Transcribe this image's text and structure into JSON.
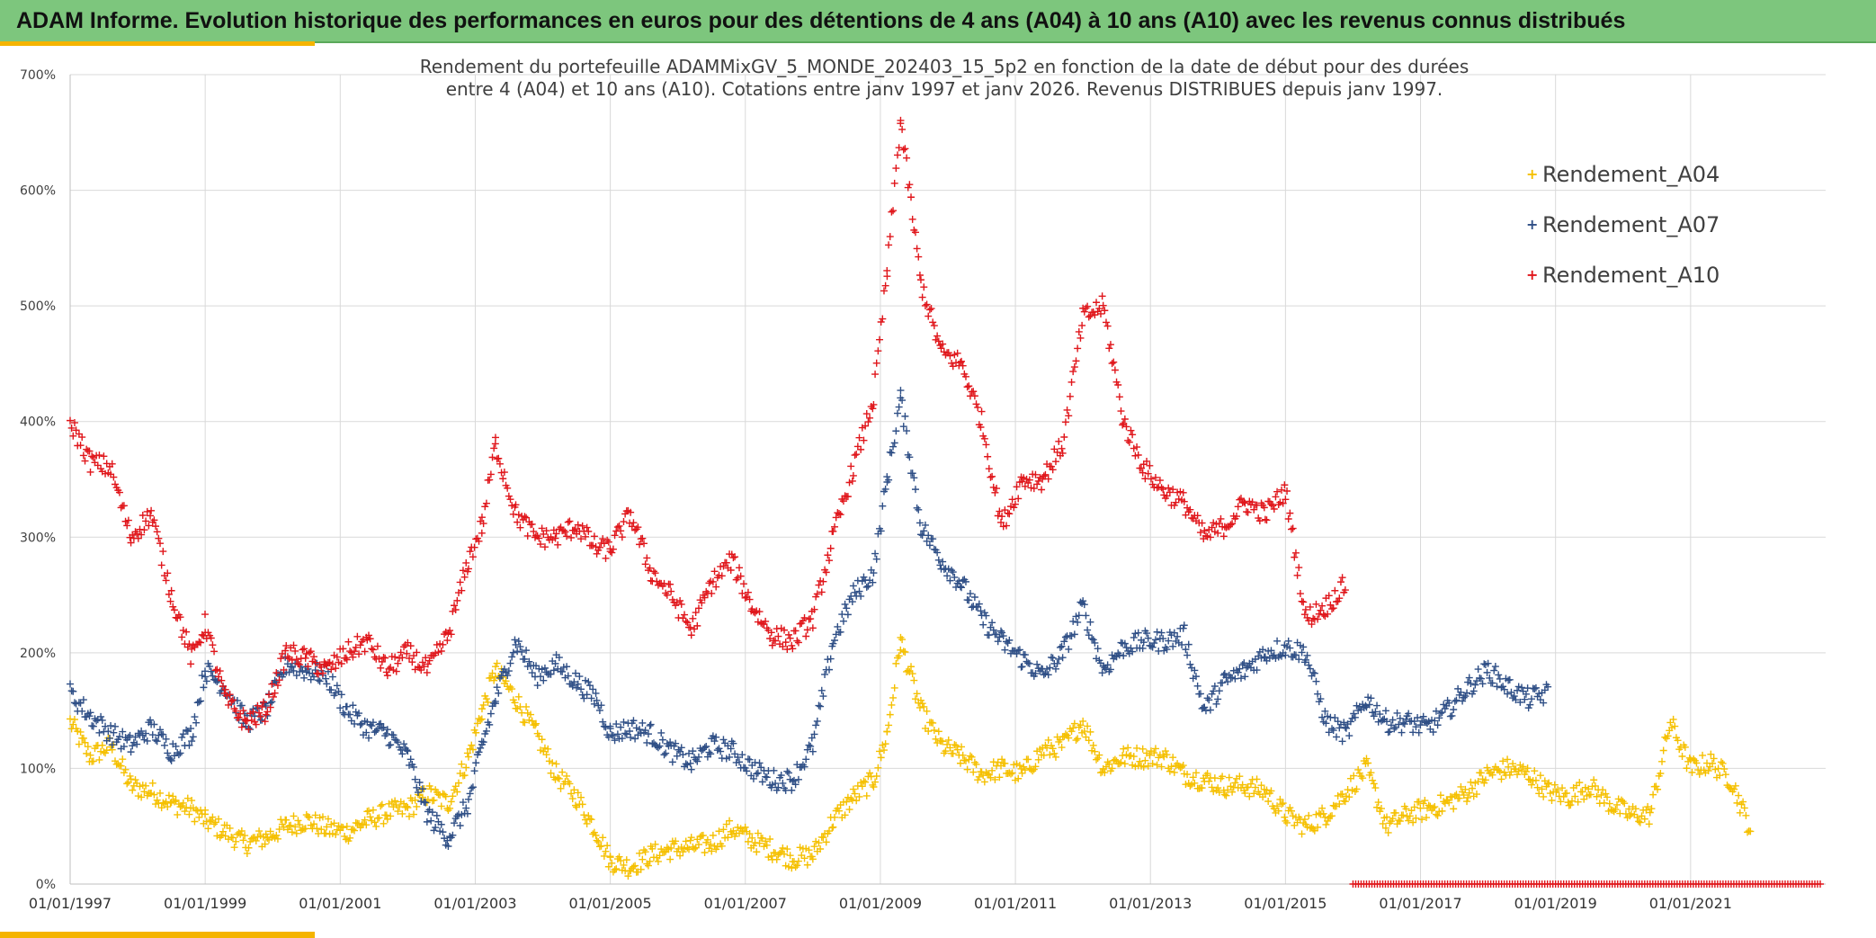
{
  "banner": {
    "title": "ADAM Informe. Evolution historique des performances en euros pour des détentions de 4 ans (A04) à 10 ans (A10) avec les revenus connus distribués"
  },
  "colors": {
    "banner": "#7dc67d",
    "accent": "#f5b400",
    "A04": "#f5c000",
    "A07": "#2f4f86",
    "A10": "#e0161b"
  },
  "chart_data": {
    "type": "scatter",
    "title_line1": "Rendement du portefeuille ADAMMixGV_5_MONDE_202403_15_5p2  en fonction de la date de début pour des durées",
    "title_line2": "entre 4 (A04) et 10 ans (A10). Cotations entre janv 1997 et janv 2026. Revenus DISTRIBUES depuis janv 1997.",
    "marker": "+",
    "xlim": [
      "01/01/1997",
      "01/01/2023"
    ],
    "ylim": [
      0,
      700
    ],
    "y_ticks": [
      "0%",
      "100%",
      "200%",
      "300%",
      "400%",
      "500%",
      "600%",
      "700%"
    ],
    "x_ticks": [
      "01/01/1997",
      "01/01/1999",
      "01/01/2001",
      "01/01/2003",
      "01/01/2005",
      "01/01/2007",
      "01/01/2009",
      "01/01/2011",
      "01/01/2013",
      "01/01/2015",
      "01/01/2017",
      "01/01/2019",
      "01/01/2021"
    ],
    "grid": true,
    "legend_position": "top-right",
    "series": [
      {
        "name": "Rendement_A04",
        "x": [
          1997.0,
          1997.3,
          1997.6,
          1997.9,
          1998.2,
          1998.5,
          1998.8,
          1999.0,
          1999.3,
          1999.6,
          1999.9,
          2000.2,
          2000.5,
          2000.8,
          2001.1,
          2001.4,
          2001.7,
          2002.0,
          2002.3,
          2002.6,
          2002.9,
          2003.1,
          2003.3,
          2003.6,
          2003.9,
          2004.2,
          2004.5,
          2004.8,
          2005.0,
          2005.3,
          2005.6,
          2005.9,
          2006.2,
          2006.5,
          2006.8,
          2007.1,
          2007.4,
          2007.7,
          2008.0,
          2008.3,
          2008.6,
          2008.9,
          2009.1,
          2009.3,
          2009.6,
          2009.9,
          2010.2,
          2010.5,
          2010.8,
          2011.1,
          2011.4,
          2011.7,
          2012.0,
          2012.3,
          2012.6,
          2012.9,
          2013.2,
          2013.5,
          2013.8,
          2014.1,
          2014.4,
          2014.7,
          2015.0,
          2015.3,
          2015.6,
          2015.9,
          2016.2,
          2016.5,
          2016.8,
          2017.1,
          2017.4,
          2017.7,
          2018.0,
          2018.3,
          2018.6,
          2018.9,
          2019.2,
          2019.5,
          2019.8,
          2020.1,
          2020.4,
          2020.7,
          2021.0,
          2021.3,
          2021.6,
          2021.9
        ],
        "y": [
          140,
          110,
          120,
          85,
          80,
          70,
          65,
          55,
          45,
          35,
          40,
          50,
          55,
          48,
          45,
          55,
          62,
          65,
          78,
          70,
          110,
          150,
          185,
          160,
          130,
          95,
          75,
          45,
          20,
          15,
          25,
          30,
          32,
          35,
          48,
          38,
          30,
          22,
          25,
          55,
          75,
          90,
          130,
          210,
          150,
          120,
          110,
          95,
          100,
          95,
          115,
          120,
          140,
          100,
          110,
          110,
          110,
          95,
          90,
          85,
          85,
          80,
          60,
          50,
          60,
          80,
          100,
          50,
          60,
          65,
          70,
          80,
          95,
          100,
          95,
          80,
          75,
          85,
          70,
          60,
          60,
          140,
          100,
          105,
          90,
          45
        ]
      },
      {
        "name": "Rendement_A07",
        "x": [
          1997.0,
          1997.3,
          1997.6,
          1997.9,
          1998.2,
          1998.5,
          1998.8,
          1999.0,
          1999.3,
          1999.6,
          1999.9,
          2000.2,
          2000.5,
          2000.8,
          2001.1,
          2001.4,
          2001.7,
          2002.0,
          2002.3,
          2002.6,
          2002.9,
          2003.1,
          2003.3,
          2003.6,
          2003.9,
          2004.2,
          2004.5,
          2004.8,
          2005.0,
          2005.3,
          2005.6,
          2005.9,
          2006.2,
          2006.5,
          2006.8,
          2007.1,
          2007.4,
          2007.7,
          2008.0,
          2008.3,
          2008.6,
          2008.9,
          2009.1,
          2009.3,
          2009.6,
          2009.9,
          2010.2,
          2010.5,
          2010.8,
          2011.1,
          2011.4,
          2011.7,
          2012.0,
          2012.3,
          2012.6,
          2012.9,
          2013.2,
          2013.5,
          2013.8,
          2014.1,
          2014.4,
          2014.7,
          2015.0,
          2015.3,
          2015.6,
          2015.9,
          2016.2,
          2016.5,
          2016.8,
          2017.1,
          2017.4,
          2017.7,
          2018.0,
          2018.3,
          2018.6,
          2018.9
        ],
        "y": [
          165,
          145,
          130,
          120,
          135,
          115,
          130,
          185,
          170,
          140,
          150,
          190,
          185,
          180,
          150,
          135,
          130,
          110,
          60,
          40,
          70,
          120,
          160,
          210,
          180,
          190,
          175,
          160,
          130,
          135,
          130,
          115,
          105,
          120,
          115,
          100,
          90,
          90,
          120,
          210,
          250,
          270,
          350,
          420,
          310,
          280,
          260,
          230,
          210,
          195,
          180,
          200,
          240,
          185,
          205,
          210,
          210,
          215,
          150,
          175,
          185,
          200,
          205,
          200,
          140,
          130,
          160,
          140,
          140,
          135,
          150,
          170,
          185,
          170,
          160,
          165
        ]
      },
      {
        "name": "Rendement_A10",
        "x": [
          1997.0,
          1997.3,
          1997.6,
          1997.9,
          1998.2,
          1998.5,
          1998.8,
          1999.0,
          1999.3,
          1999.6,
          1999.9,
          2000.2,
          2000.5,
          2000.8,
          2001.1,
          2001.4,
          2001.7,
          2002.0,
          2002.3,
          2002.6,
          2002.9,
          2003.1,
          2003.3,
          2003.6,
          2003.9,
          2004.2,
          2004.5,
          2004.8,
          2005.0,
          2005.3,
          2005.6,
          2005.9,
          2006.2,
          2006.5,
          2006.8,
          2007.1,
          2007.4,
          2007.7,
          2008.0,
          2008.3,
          2008.6,
          2008.9,
          2009.1,
          2009.3,
          2009.6,
          2009.9,
          2010.2,
          2010.5,
          2010.8,
          2011.1,
          2011.4,
          2011.7,
          2012.0,
          2012.3,
          2012.6,
          2012.9,
          2013.2,
          2013.5,
          2013.8,
          2014.1,
          2014.4,
          2014.7,
          2015.0,
          2015.3,
          2015.6,
          2015.9
        ],
        "y": [
          400,
          365,
          360,
          300,
          320,
          250,
          195,
          225,
          160,
          140,
          150,
          200,
          195,
          185,
          200,
          210,
          185,
          200,
          185,
          215,
          280,
          310,
          380,
          320,
          300,
          300,
          310,
          290,
          290,
          320,
          270,
          250,
          220,
          260,
          280,
          240,
          215,
          210,
          230,
          300,
          360,
          420,
          530,
          660,
          520,
          460,
          450,
          400,
          310,
          350,
          350,
          380,
          490,
          500,
          400,
          360,
          340,
          330,
          300,
          310,
          330,
          320,
          340,
          230,
          240,
          260
        ]
      }
    ],
    "annotations": [
      {
        "text": "dense red marks along baseline",
        "x_from": "2016",
        "x_to": "2023",
        "y": 0
      }
    ]
  }
}
